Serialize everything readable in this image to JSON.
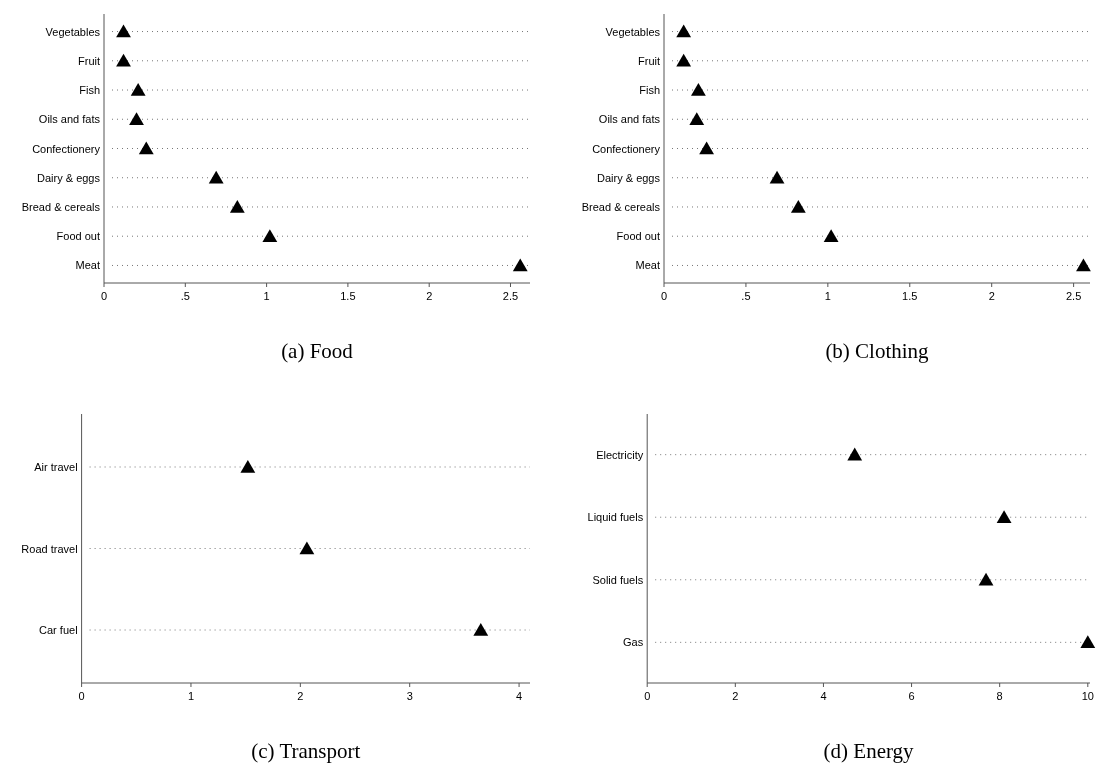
{
  "chart_data": [
    {
      "type": "scatter",
      "orientation": "horizontal",
      "title": "(a) Food",
      "categories": [
        "Vegetables",
        "Fruit",
        "Fish",
        "Oils and fats",
        "Confectionery",
        "Dairy & eggs",
        "Bread & cereals",
        "Food out",
        "Meat"
      ],
      "values": [
        0.12,
        0.12,
        0.21,
        0.2,
        0.26,
        0.69,
        0.82,
        1.02,
        2.56
      ],
      "color": "#000000",
      "marker": "triangle",
      "grid": "y",
      "xlim": [
        0,
        2.62
      ],
      "xticks": [
        0,
        {
          "value": 0.5,
          "label": ".5"
        },
        1,
        1.5,
        2,
        2.5
      ]
    },
    {
      "type": "scatter",
      "orientation": "horizontal",
      "title": "(b) Clothing",
      "categories": [
        "Vegetables",
        "Fruit",
        "Fish",
        "Oils and fats",
        "Confectionery",
        "Dairy & eggs",
        "Bread & cereals",
        "Food out",
        "Meat"
      ],
      "values": [
        0.12,
        0.12,
        0.21,
        0.2,
        0.26,
        0.69,
        0.82,
        1.02,
        2.56
      ],
      "color": "#000000",
      "marker": "triangle",
      "grid": "y",
      "xlim": [
        0,
        2.6
      ],
      "xticks": [
        0,
        {
          "value": 0.5,
          "label": ".5"
        },
        1,
        1.5,
        2,
        2.5
      ]
    },
    {
      "type": "scatter",
      "orientation": "horizontal",
      "title": "(c) Transport",
      "categories": [
        "Air travel",
        "Road travel",
        "Car fuel"
      ],
      "values": [
        1.52,
        2.06,
        3.65
      ],
      "color": "#000000",
      "marker": "triangle",
      "grid": "y",
      "xlim": [
        0,
        4.1
      ],
      "xticks": [
        0,
        1,
        2,
        3,
        4
      ]
    },
    {
      "type": "scatter",
      "orientation": "horizontal",
      "title": "(d) Energy",
      "categories": [
        "Electricity",
        "Liquid fuels",
        "Solid fuels",
        "Gas"
      ],
      "values": [
        4.71,
        8.1,
        7.69,
        10
      ],
      "color": "#000000",
      "marker": "triangle",
      "grid": "y",
      "xlim": [
        0,
        10.05
      ],
      "xticks": [
        0,
        2,
        4,
        6,
        8,
        10
      ]
    }
  ]
}
